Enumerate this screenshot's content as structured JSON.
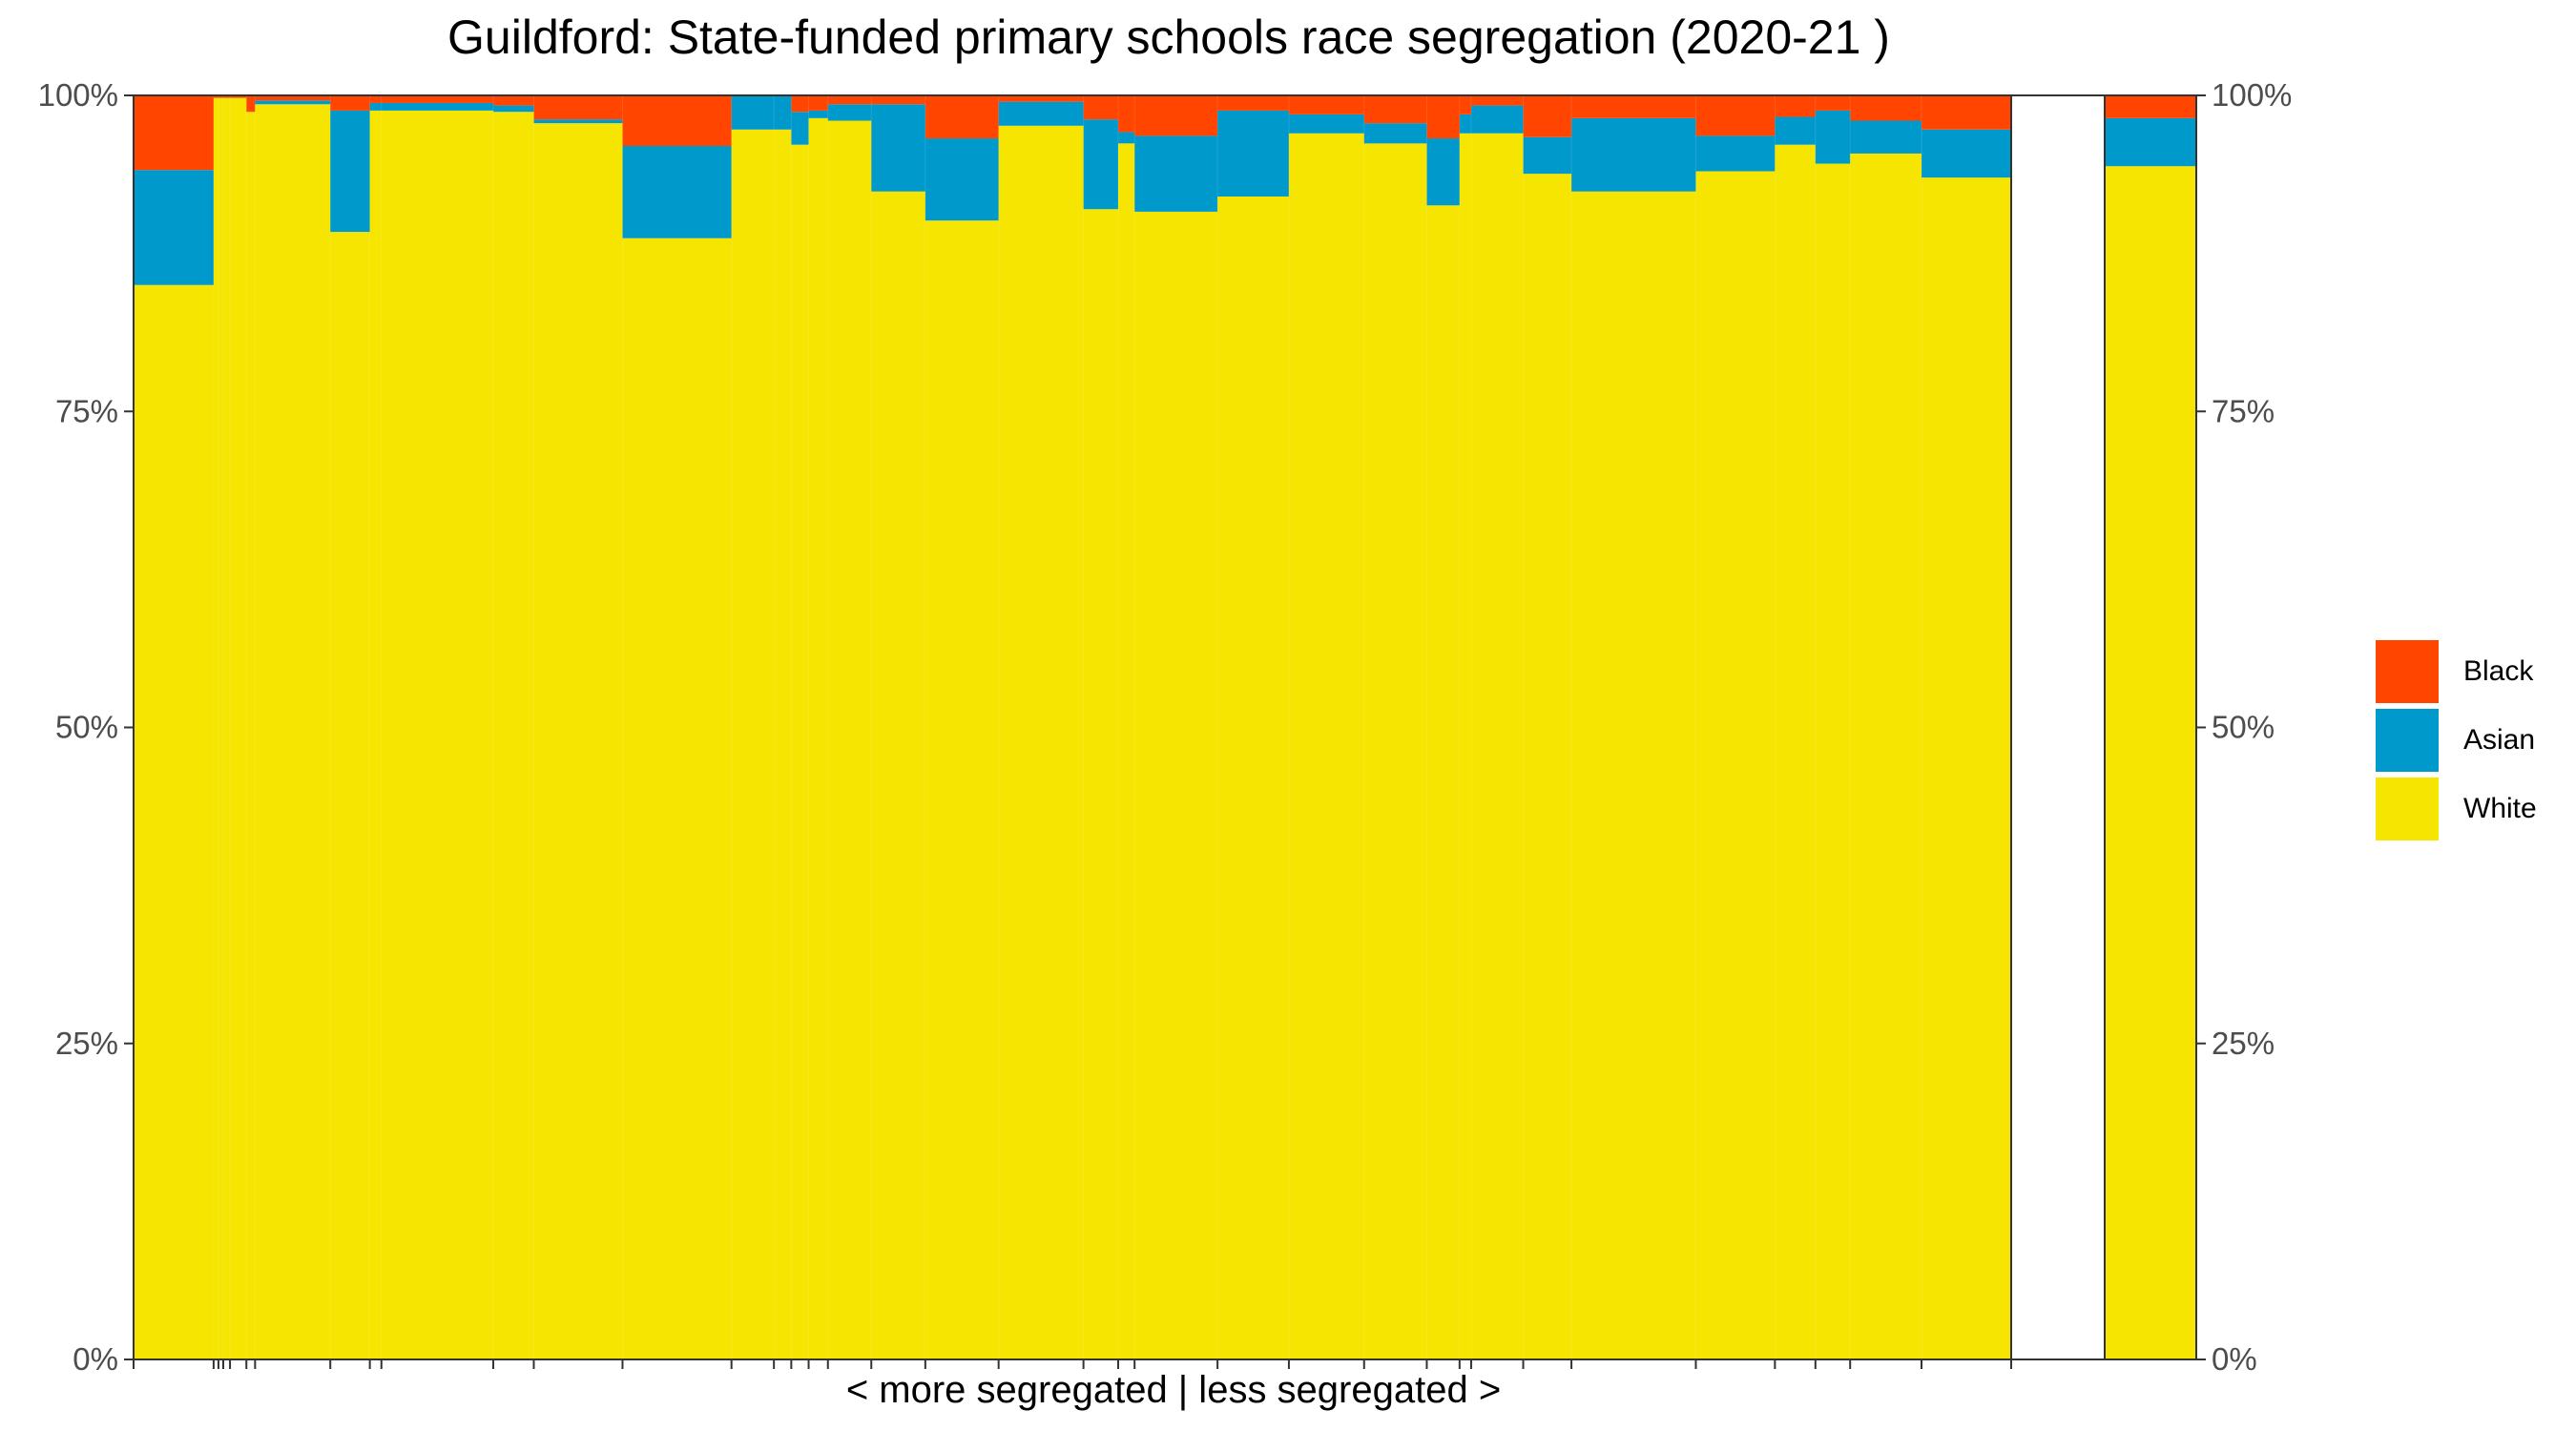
{
  "chart_data": {
    "type": "bar",
    "variant": "variable-width stacked percent (marimekko)",
    "title": "Guildford: State-funded primary schools race segregation (2020-21 )",
    "xlabel": "< more segregated | less segregated >",
    "ylabel": "",
    "ylim": [
      0,
      100
    ],
    "y_ticks": [
      "0%",
      "25%",
      "50%",
      "75%",
      "100%"
    ],
    "y_axis_both_sides": true,
    "grid": false,
    "legend_position": "right",
    "series_order_bottom_to_top": [
      "White",
      "Asian",
      "Black"
    ],
    "colors": {
      "White": "#f5e500",
      "Asian": "#0099cc",
      "Black": "#ff4500"
    },
    "legend": [
      {
        "name": "Black",
        "color": "#ff4500"
      },
      {
        "name": "Asian",
        "color": "#0099cc"
      },
      {
        "name": "White",
        "color": "#f5e500"
      }
    ],
    "schools": [
      {
        "width": 83,
        "White": 85.0,
        "Asian": 9.1,
        "Black": 5.9
      },
      {
        "width": 5,
        "White": 99.8,
        "Asian": 0.0,
        "Black": 0.2
      },
      {
        "width": 5,
        "White": 99.8,
        "Asian": 0.0,
        "Black": 0.2
      },
      {
        "width": 7,
        "White": 99.8,
        "Asian": 0.0,
        "Black": 0.2
      },
      {
        "width": 17,
        "White": 99.8,
        "Asian": 0.0,
        "Black": 0.2
      },
      {
        "width": 9,
        "White": 98.7,
        "Asian": 0.0,
        "Black": 1.3
      },
      {
        "width": 78,
        "White": 99.3,
        "Asian": 0.3,
        "Black": 0.4
      },
      {
        "width": 41,
        "White": 89.2,
        "Asian": 9.6,
        "Black": 1.2
      },
      {
        "width": 12,
        "White": 98.8,
        "Asian": 0.6,
        "Black": 0.6
      },
      {
        "width": 116,
        "White": 98.8,
        "Asian": 0.6,
        "Black": 0.6
      },
      {
        "width": 42,
        "White": 98.7,
        "Asian": 0.5,
        "Black": 0.8
      },
      {
        "width": 92,
        "White": 97.8,
        "Asian": 0.3,
        "Black": 1.9
      },
      {
        "width": 113,
        "White": 88.7,
        "Asian": 7.3,
        "Black": 4.0
      },
      {
        "width": 44,
        "White": 97.3,
        "Asian": 2.7,
        "Black": 0.0
      },
      {
        "width": 18,
        "White": 97.3,
        "Asian": 2.7,
        "Black": 0.0
      },
      {
        "width": 18,
        "White": 96.1,
        "Asian": 2.6,
        "Black": 1.3
      },
      {
        "width": 20,
        "White": 98.2,
        "Asian": 0.6,
        "Black": 1.2
      },
      {
        "width": 45,
        "White": 98.0,
        "Asian": 1.3,
        "Black": 0.7
      },
      {
        "width": 56,
        "White": 92.4,
        "Asian": 6.9,
        "Black": 0.7
      },
      {
        "width": 76,
        "White": 90.1,
        "Asian": 6.5,
        "Black": 3.4
      },
      {
        "width": 88,
        "White": 97.6,
        "Asian": 1.9,
        "Black": 0.5
      },
      {
        "width": 36,
        "White": 91.0,
        "Asian": 7.1,
        "Black": 1.9
      },
      {
        "width": 17,
        "White": 96.2,
        "Asian": 0.9,
        "Black": 2.9
      },
      {
        "width": 86,
        "White": 90.8,
        "Asian": 6.0,
        "Black": 3.2
      },
      {
        "width": 74,
        "White": 92.0,
        "Asian": 6.8,
        "Black": 1.2
      },
      {
        "width": 78,
        "White": 97.0,
        "Asian": 1.5,
        "Black": 1.5
      },
      {
        "width": 65,
        "White": 96.2,
        "Asian": 1.6,
        "Black": 2.2
      },
      {
        "width": 34,
        "White": 91.3,
        "Asian": 5.3,
        "Black": 3.4
      },
      {
        "width": 12,
        "White": 97.0,
        "Asian": 1.5,
        "Black": 1.5
      },
      {
        "width": 54,
        "White": 97.0,
        "Asian": 2.2,
        "Black": 0.8
      },
      {
        "width": 50,
        "White": 93.8,
        "Asian": 2.9,
        "Black": 3.3
      },
      {
        "width": 129,
        "White": 92.4,
        "Asian": 5.8,
        "Black": 1.8
      },
      {
        "width": 82,
        "White": 94.0,
        "Asian": 2.8,
        "Black": 3.2
      },
      {
        "width": 42,
        "White": 96.1,
        "Asian": 2.2,
        "Black": 1.7
      },
      {
        "width": 36,
        "White": 94.6,
        "Asian": 4.2,
        "Black": 1.2
      },
      {
        "width": 74,
        "White": 95.4,
        "Asian": 2.6,
        "Black": 2.0
      },
      {
        "width": 93,
        "White": 93.5,
        "Asian": 3.8,
        "Black": 2.7
      }
    ],
    "overall": {
      "White": 94.4,
      "Asian": 3.8,
      "Black": 1.8
    }
  }
}
